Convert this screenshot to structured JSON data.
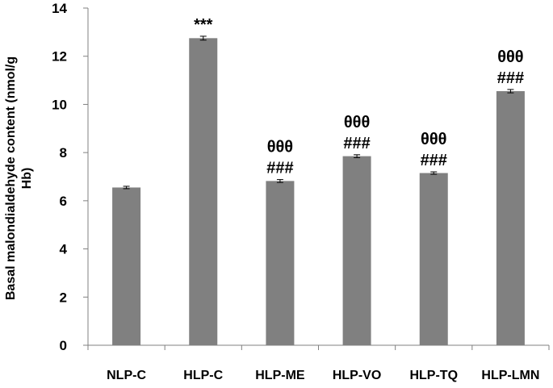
{
  "chart_data": {
    "type": "bar",
    "title": "",
    "xlabel": "",
    "ylabel_lines": [
      "Basal malondialdehyde content (nmol/g",
      "Hb)"
    ],
    "categories": [
      "NLP-C",
      "HLP-C",
      "HLP-ME",
      "HLP-VO",
      "HLP-TQ",
      "HLP-LMN"
    ],
    "values": [
      6.55,
      12.75,
      6.82,
      7.85,
      7.15,
      10.55
    ],
    "errors": [
      0.05,
      0.08,
      0.06,
      0.06,
      0.05,
      0.07
    ],
    "annotations": [
      [],
      [
        "***"
      ],
      [
        "θθθ",
        "###"
      ],
      [
        "θθθ",
        "###"
      ],
      [
        "θθθ",
        "###"
      ],
      [
        "θθθ",
        "###"
      ]
    ],
    "ylim": [
      0,
      14
    ],
    "yticks": [
      "0",
      "2",
      "4",
      "6",
      "8",
      "10",
      "12",
      "14"
    ],
    "grid": false,
    "bar_color": "#808080"
  }
}
